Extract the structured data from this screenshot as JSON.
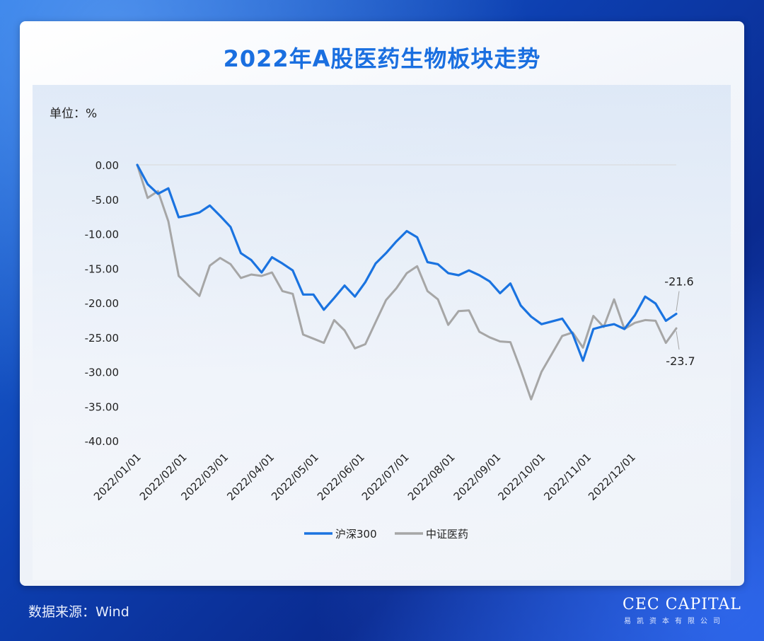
{
  "title": "2022年A股医药生物板块走势",
  "unit_label": "单位：%",
  "source": "数据来源：Wind",
  "brand": {
    "name": "CEC CAPITAL",
    "sub": "易凯资本有限公司"
  },
  "colors": {
    "accent": "#1a73e0",
    "series1": "#1a73e0",
    "series2": "#a6a6a6",
    "brand_title": "#1a6fe0"
  },
  "chart_data": {
    "type": "line",
    "ylim": [
      -40,
      0
    ],
    "yticks": [
      0,
      -5,
      -10,
      -15,
      -20,
      -25,
      -30,
      -35,
      -40
    ],
    "ytick_labels": [
      "0.00",
      "-5.00",
      "-10.00",
      "-15.00",
      "-20.00",
      "-25.00",
      "-30.00",
      "-35.00",
      "-40.00"
    ],
    "xlim": [
      0,
      52
    ],
    "xtick_positions": [
      0,
      4.43,
      8.43,
      12.86,
      17.14,
      21.57,
      25.86,
      30.29,
      34.71,
      39,
      43.43,
      47.71
    ],
    "xtick_labels": [
      "2022/01/01",
      "2022/02/01",
      "2022/03/01",
      "2022/04/01",
      "2022/05/01",
      "2022/06/01",
      "2022/07/01",
      "2022/08/01",
      "2022/09/01",
      "2022/10/01",
      "2022/11/01",
      "2022/12/01"
    ],
    "grid": false,
    "legend_position": "bottom",
    "series": [
      {
        "name": "沪深300",
        "color": "#1a73e0",
        "values": [
          0,
          -2.8,
          -4.2,
          -3.4,
          -7.6,
          -7.3,
          -6.9,
          -5.9,
          -7.4,
          -9.0,
          -12.8,
          -13.8,
          -15.6,
          -13.4,
          -14.3,
          -15.3,
          -18.8,
          -18.8,
          -21.0,
          -19.3,
          -17.5,
          -19.1,
          -17.0,
          -14.3,
          -12.8,
          -11.1,
          -9.6,
          -10.5,
          -14.1,
          -14.4,
          -15.7,
          -16.0,
          -15.3,
          -16.0,
          -16.9,
          -18.6,
          -17.2,
          -20.4,
          -22.0,
          -23.1,
          -22.7,
          -22.3,
          -24.5,
          -28.4,
          -23.8,
          -23.4,
          -23.1,
          -23.8,
          -21.8,
          -19.1,
          -20.1,
          -22.6,
          -21.6
        ]
      },
      {
        "name": "中证医药",
        "color": "#a6a6a6",
        "values": [
          0,
          -4.8,
          -3.8,
          -8.2,
          -16.1,
          -17.6,
          -19.0,
          -14.6,
          -13.5,
          -14.4,
          -16.4,
          -15.9,
          -16.1,
          -15.6,
          -18.3,
          -18.7,
          -24.6,
          -25.2,
          -25.8,
          -22.5,
          -24.0,
          -26.6,
          -26.0,
          -22.8,
          -19.6,
          -17.9,
          -15.7,
          -14.7,
          -18.3,
          -19.5,
          -23.2,
          -21.2,
          -21.1,
          -24.2,
          -25.0,
          -25.6,
          -25.7,
          -29.7,
          -34.0,
          -30.0,
          -27.4,
          -24.8,
          -24.3,
          -26.5,
          -21.9,
          -23.5,
          -19.5,
          -23.8,
          -22.9,
          -22.5,
          -22.6,
          -25.8,
          -23.7
        ]
      }
    ],
    "end_labels": [
      "-21.6",
      "-23.7"
    ]
  }
}
